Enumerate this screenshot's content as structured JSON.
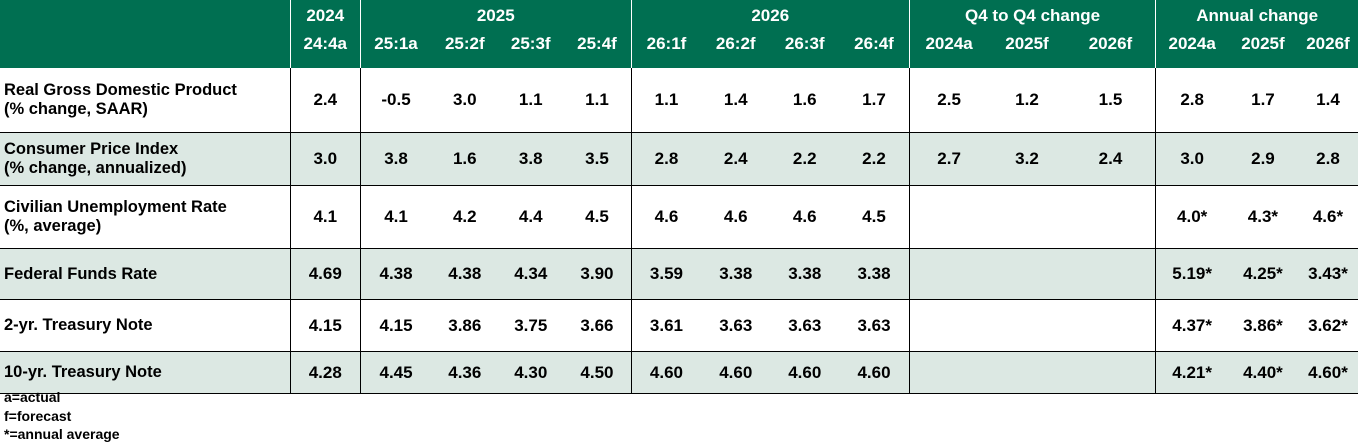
{
  "header": {
    "groups": [
      "2024",
      "2025",
      "2026",
      "Q4 to Q4 change",
      "Annual change"
    ],
    "columns": [
      "24:4a",
      "25:1a",
      "25:2f",
      "25:3f",
      "25:4f",
      "26:1f",
      "26:2f",
      "26:3f",
      "26:4f",
      "2024a",
      "2025f",
      "2026f",
      "2024a",
      "2025f",
      "2026f"
    ]
  },
  "rows": [
    {
      "label_line1": "Real Gross Domestic Product",
      "label_line2": "(% change, SAAR)",
      "values": [
        "2.4",
        "-0.5",
        "3.0",
        "1.1",
        "1.1",
        "1.1",
        "1.4",
        "1.6",
        "1.7",
        "2.5",
        "1.2",
        "1.5",
        "2.8",
        "1.7",
        "1.4"
      ]
    },
    {
      "label_line1": "Consumer Price Index",
      "label_line2": "(% change, annualized)",
      "values": [
        "3.0",
        "3.8",
        "1.6",
        "3.8",
        "3.5",
        "2.8",
        "2.4",
        "2.2",
        "2.2",
        "2.7",
        "3.2",
        "2.4",
        "3.0",
        "2.9",
        "2.8"
      ]
    },
    {
      "label_line1": "Civilian Unemployment Rate",
      "label_line2": "(%, average)",
      "values": [
        "4.1",
        "4.1",
        "4.2",
        "4.4",
        "4.5",
        "4.6",
        "4.6",
        "4.6",
        "4.5",
        "",
        "",
        "",
        "4.0*",
        "4.3*",
        "4.6*"
      ]
    },
    {
      "label_line1": "Federal Funds Rate",
      "label_line2": "",
      "values": [
        "4.69",
        "4.38",
        "4.38",
        "4.34",
        "3.90",
        "3.59",
        "3.38",
        "3.38",
        "3.38",
        "",
        "",
        "",
        "5.19*",
        "4.25*",
        "3.43*"
      ]
    },
    {
      "label_line1": "2-yr. Treasury Note",
      "label_line2": "",
      "values": [
        "4.15",
        "4.15",
        "3.86",
        "3.75",
        "3.66",
        "3.61",
        "3.63",
        "3.63",
        "3.63",
        "",
        "",
        "",
        "4.37*",
        "3.86*",
        "3.62*"
      ]
    },
    {
      "label_line1": "10-yr. Treasury Note",
      "label_line2": "",
      "values": [
        "4.28",
        "4.45",
        "4.36",
        "4.30",
        "4.50",
        "4.60",
        "4.60",
        "4.60",
        "4.60",
        "",
        "",
        "",
        "4.21*",
        "4.40*",
        "4.60*"
      ]
    }
  ],
  "notes": [
    "a=actual",
    "f=forecast",
    "*=annual average"
  ],
  "colors": {
    "header_bg": "#006f51",
    "header_text": "#ffffff",
    "shaded_row": "#dce8e3"
  }
}
